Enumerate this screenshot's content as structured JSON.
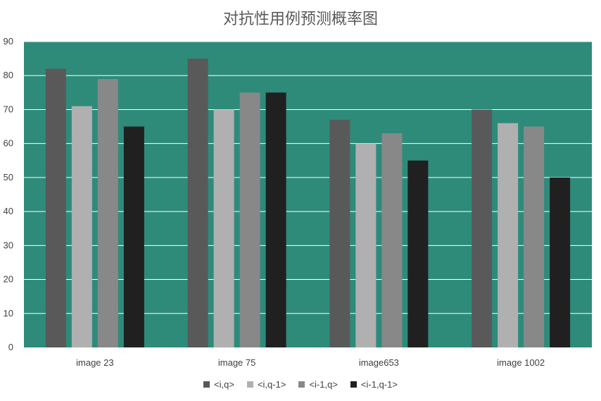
{
  "chart_data": {
    "type": "bar",
    "title": "对抗性用例预测概率图",
    "xlabel": "",
    "ylabel": "",
    "categories": [
      "image 23",
      "image 75",
      "image653",
      "image 1002"
    ],
    "ylim": [
      0,
      90
    ],
    "yticks": [
      0,
      10,
      20,
      30,
      40,
      50,
      60,
      70,
      80,
      90
    ],
    "grid": true,
    "legend_position": "bottom",
    "plot_background": "#2E8B7A",
    "series": [
      {
        "name": "<i,q>",
        "color": "#595959",
        "values": [
          82,
          85,
          67,
          70
        ]
      },
      {
        "name": "<i,q-1>",
        "color": "#B0B0B0",
        "values": [
          71,
          70,
          60,
          66
        ]
      },
      {
        "name": "<i-1,q>",
        "color": "#888888",
        "values": [
          79,
          75,
          63,
          65
        ]
      },
      {
        "name": "<i-1,q-1>",
        "color": "#202020",
        "values": [
          65,
          75,
          55,
          50
        ]
      }
    ]
  }
}
